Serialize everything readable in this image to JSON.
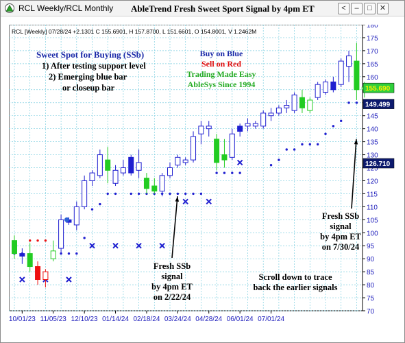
{
  "window": {
    "title": "RCL Weekly/RCL Monthly",
    "chart_title": "AbleTrend Fresh Sweet Sport Signal by 4pm ET",
    "controls": {
      "back": "<",
      "minimize": "–",
      "restore": "□",
      "close": "✕"
    }
  },
  "info_line": "RCL [Weekly] 07/28/24 +2.1301 C 155.6901, H 157.8700, L 151.6601, O 154.8001, V 1.2462M",
  "annotations": {
    "sweet_title": "Sweet Spot for Buying (SSb)",
    "sweet_1": "1) After testing support level",
    "sweet_2": "2) Emerging blue bar",
    "sweet_3": "or closeup bar",
    "buy": "Buy on Blue",
    "sell": "Sell on Red",
    "trading": "Trading Made Easy",
    "ablesys": "AbleSys Since 1994",
    "fresh1_l1": "Fresh SSb",
    "fresh1_l2": "signal",
    "fresh1_l3": "by 4pm ET",
    "fresh1_l4": "on 2/22/24",
    "fresh2_l1": "Fresh SSb",
    "fresh2_l2": "signal",
    "fresh2_l3": "by 4pm ET",
    "fresh2_l4": "on 7/30/24",
    "scroll_l1": "Scroll down to trace",
    "scroll_l2": "back the earlier signals"
  },
  "colors": {
    "up": "#1f1fd0",
    "down_bar": "#22cc22",
    "red": "#ee1111",
    "grid": "#7fcfe0",
    "axis_text": "#1b1bbb"
  },
  "chart_data": {
    "type": "candlestick",
    "ylim": [
      70,
      180
    ],
    "yticks": [
      70,
      75,
      80,
      85,
      90,
      95,
      100,
      105,
      110,
      115,
      120,
      125,
      130,
      135,
      140,
      145,
      150,
      155,
      160,
      165,
      170,
      175,
      180
    ],
    "x_labels": [
      "10/01/23",
      "11/05/23",
      "12/10/23",
      "01/14/24",
      "02/18/24",
      "03/24/24",
      "04/28/24",
      "06/01/24",
      "07/01/24"
    ],
    "x_label_index": [
      1,
      5,
      9,
      13,
      17,
      21,
      25,
      29,
      33
    ],
    "price_badges": [
      {
        "value": "155.690",
        "price": 155.69,
        "style": "green"
      },
      {
        "value": "149.499",
        "price": 149.499,
        "style": "navy"
      },
      {
        "value": "126.710",
        "price": 126.71,
        "style": "navy"
      }
    ],
    "candles": [
      {
        "i": 0,
        "o": 92,
        "h": 99,
        "l": 90,
        "c": 97,
        "t": "green"
      },
      {
        "i": 1,
        "o": 91,
        "h": 94,
        "l": 88,
        "c": 92,
        "t": "blue"
      },
      {
        "i": 2,
        "o": 92,
        "h": 96,
        "l": 85,
        "c": 87,
        "t": "green"
      },
      {
        "i": 3,
        "o": 87,
        "h": 89,
        "l": 80,
        "c": 82,
        "t": "red"
      },
      {
        "i": 4,
        "o": 82,
        "h": 86,
        "l": 79,
        "c": 85,
        "t": "red_hollow"
      },
      {
        "i": 5,
        "o": 93,
        "h": 97,
        "l": 89,
        "c": 90,
        "t": "hollow_green"
      },
      {
        "i": 6,
        "o": 94,
        "h": 107,
        "l": 92,
        "c": 105,
        "t": "hollow"
      },
      {
        "i": 7,
        "o": 105,
        "h": 106,
        "l": 103,
        "c": 104,
        "t": "blue"
      },
      {
        "i": 8,
        "o": 103,
        "h": 112,
        "l": 101,
        "c": 110,
        "t": "hollow"
      },
      {
        "i": 9,
        "o": 110,
        "h": 122,
        "l": 109,
        "c": 120,
        "t": "hollow"
      },
      {
        "i": 10,
        "o": 120,
        "h": 124,
        "l": 118,
        "c": 123,
        "t": "hollow"
      },
      {
        "i": 11,
        "o": 122,
        "h": 132,
        "l": 121,
        "c": 130,
        "t": "hollow"
      },
      {
        "i": 12,
        "o": 128,
        "h": 133,
        "l": 119,
        "c": 124,
        "t": "green"
      },
      {
        "i": 13,
        "o": 119,
        "h": 126,
        "l": 118,
        "c": 124,
        "t": "hollow"
      },
      {
        "i": 14,
        "o": 125,
        "h": 128,
        "l": 122,
        "c": 123,
        "t": "hollow"
      },
      {
        "i": 15,
        "o": 123,
        "h": 130,
        "l": 122,
        "c": 129,
        "t": "blue"
      },
      {
        "i": 16,
        "o": 127,
        "h": 132,
        "l": 121,
        "c": 124,
        "t": "hollow"
      },
      {
        "i": 17,
        "o": 121,
        "h": 123,
        "l": 115,
        "c": 117,
        "t": "green"
      },
      {
        "i": 18,
        "o": 118,
        "h": 121,
        "l": 115,
        "c": 116,
        "t": "green"
      },
      {
        "i": 19,
        "o": 116,
        "h": 123,
        "l": 114,
        "c": 122,
        "t": "hollow"
      },
      {
        "i": 20,
        "o": 122,
        "h": 127,
        "l": 121,
        "c": 125,
        "t": "hollow"
      },
      {
        "i": 21,
        "o": 126,
        "h": 130,
        "l": 125,
        "c": 129,
        "t": "hollow"
      },
      {
        "i": 22,
        "o": 128,
        "h": 129,
        "l": 126,
        "c": 127,
        "t": "hollow"
      },
      {
        "i": 23,
        "o": 128,
        "h": 139,
        "l": 127,
        "c": 137,
        "t": "hollow"
      },
      {
        "i": 24,
        "o": 138,
        "h": 143,
        "l": 134,
        "c": 141,
        "t": "hollow"
      },
      {
        "i": 25,
        "o": 140,
        "h": 143,
        "l": 137,
        "c": 141,
        "t": "hollow"
      },
      {
        "i": 26,
        "o": 136,
        "h": 138,
        "l": 124,
        "c": 127,
        "t": "green"
      },
      {
        "i": 27,
        "o": 128,
        "h": 136,
        "l": 125,
        "c": 130,
        "t": "green"
      },
      {
        "i": 28,
        "o": 129,
        "h": 140,
        "l": 128,
        "c": 138,
        "t": "hollow"
      },
      {
        "i": 29,
        "o": 139,
        "h": 142,
        "l": 137,
        "c": 141,
        "t": "blue"
      },
      {
        "i": 30,
        "o": 141,
        "h": 144,
        "l": 139,
        "c": 142,
        "t": "hollow"
      },
      {
        "i": 31,
        "o": 142,
        "h": 143,
        "l": 140,
        "c": 141,
        "t": "hollow"
      },
      {
        "i": 32,
        "o": 141,
        "h": 147,
        "l": 140,
        "c": 146,
        "t": "hollow"
      },
      {
        "i": 33,
        "o": 145,
        "h": 148,
        "l": 143,
        "c": 146,
        "t": "hollow"
      },
      {
        "i": 34,
        "o": 146,
        "h": 149,
        "l": 145,
        "c": 148,
        "t": "hollow"
      },
      {
        "i": 35,
        "o": 148,
        "h": 151,
        "l": 146,
        "c": 149,
        "t": "hollow"
      },
      {
        "i": 36,
        "o": 147,
        "h": 154,
        "l": 146,
        "c": 153,
        "t": "hollow"
      },
      {
        "i": 37,
        "o": 152,
        "h": 155,
        "l": 146,
        "c": 148,
        "t": "green"
      },
      {
        "i": 38,
        "o": 147,
        "h": 152,
        "l": 146,
        "c": 151,
        "t": "hollow_green"
      },
      {
        "i": 39,
        "o": 152,
        "h": 158,
        "l": 151,
        "c": 157,
        "t": "hollow"
      },
      {
        "i": 40,
        "o": 154,
        "h": 159,
        "l": 153,
        "c": 158,
        "t": "hollow"
      },
      {
        "i": 41,
        "o": 155,
        "h": 160,
        "l": 154,
        "c": 158,
        "t": "blue"
      },
      {
        "i": 42,
        "o": 157,
        "h": 167,
        "l": 156,
        "c": 166,
        "t": "hollow"
      },
      {
        "i": 43,
        "o": 164,
        "h": 170,
        "l": 158,
        "c": 168,
        "t": "hollow"
      },
      {
        "i": 44,
        "o": 166,
        "h": 173,
        "l": 151,
        "c": 155,
        "t": "green"
      },
      {
        "i": 45,
        "o": 155,
        "h": 158,
        "l": 152,
        "c": 156,
        "t": "hollow_green"
      }
    ],
    "red_dots": [
      {
        "i": 2,
        "v": 97
      },
      {
        "i": 3,
        "v": 97
      },
      {
        "i": 4,
        "v": 97
      }
    ],
    "blue_dots": [
      {
        "i": 0,
        "v": 92
      },
      {
        "i": 1,
        "v": 92
      },
      {
        "i": 5,
        "v": 92
      },
      {
        "i": 6,
        "v": 92
      },
      {
        "i": 7,
        "v": 92
      },
      {
        "i": 8,
        "v": 92
      },
      {
        "i": 9,
        "v": 98
      },
      {
        "i": 10,
        "v": 109
      },
      {
        "i": 11,
        "v": 111
      },
      {
        "i": 12,
        "v": 115
      },
      {
        "i": 13,
        "v": 115
      },
      {
        "i": 15,
        "v": 115
      },
      {
        "i": 16,
        "v": 115
      },
      {
        "i": 17,
        "v": 115
      },
      {
        "i": 18,
        "v": 115
      },
      {
        "i": 19,
        "v": 115
      },
      {
        "i": 20,
        "v": 115
      },
      {
        "i": 21,
        "v": 115
      },
      {
        "i": 22,
        "v": 115
      },
      {
        "i": 23,
        "v": 115
      },
      {
        "i": 24,
        "v": 115
      },
      {
        "i": 26,
        "v": 123
      },
      {
        "i": 27,
        "v": 123
      },
      {
        "i": 28,
        "v": 123
      },
      {
        "i": 29,
        "v": 123
      },
      {
        "i": 33,
        "v": 126
      },
      {
        "i": 34,
        "v": 128
      },
      {
        "i": 35,
        "v": 132
      },
      {
        "i": 36,
        "v": 132
      },
      {
        "i": 37,
        "v": 134
      },
      {
        "i": 38,
        "v": 134
      },
      {
        "i": 39,
        "v": 134
      },
      {
        "i": 40,
        "v": 138
      },
      {
        "i": 41,
        "v": 141
      },
      {
        "i": 42,
        "v": 143
      },
      {
        "i": 43,
        "v": 150
      },
      {
        "i": 44,
        "v": 150
      },
      {
        "i": 45,
        "v": 150
      }
    ],
    "x_marks": [
      {
        "i": 1,
        "v": 82
      },
      {
        "i": 4,
        "v": 82
      },
      {
        "i": 7,
        "v": 82
      },
      {
        "i": 10,
        "v": 95
      },
      {
        "i": 13,
        "v": 95
      },
      {
        "i": 16,
        "v": 95
      },
      {
        "i": 19,
        "v": 95
      },
      {
        "i": 22,
        "v": 112
      },
      {
        "i": 25,
        "v": 112
      },
      {
        "i": 29,
        "v": 127
      }
    ]
  }
}
